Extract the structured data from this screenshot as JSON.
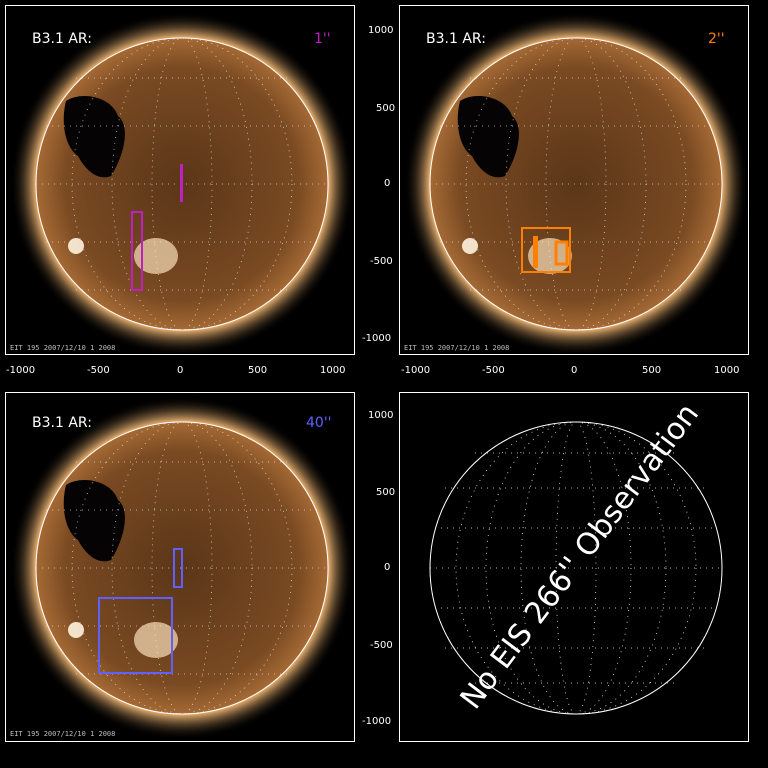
{
  "panels": [
    {
      "ar_label": "B3.1  AR:",
      "slit_label": "1''",
      "slit_color": "#c020c0",
      "date": "EIT 195 2007/12/10 1 2008"
    },
    {
      "ar_label": "B3.1  AR:",
      "slit_label": "2''",
      "slit_color": "#ff7f00",
      "date": "EIT 195 2007/12/10 1 2008"
    },
    {
      "ar_label": "B3.1  AR:",
      "slit_label": "40''",
      "slit_color": "#6060ff",
      "date": "EIT 195 2007/12/10 1 2008"
    },
    {
      "no_obs": "No EIS 266'' Observation"
    }
  ],
  "axis_ticks": {
    "x": [
      "-1000",
      "-500",
      "0",
      "500",
      "1000"
    ],
    "y": [
      "1000",
      "500",
      "0",
      "-500",
      "-1000"
    ]
  },
  "colors": {
    "sun_core": "#7a4a1e",
    "sun_limb": "#d99a52",
    "corona": "#8a5a2a",
    "grid": "#ffffff"
  }
}
